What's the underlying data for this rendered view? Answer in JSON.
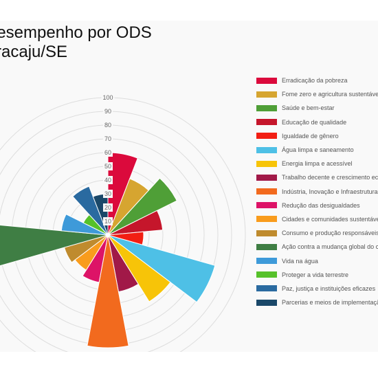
{
  "title_lines": [
    "Desempenho por ODS",
    "Aracaju/SE"
  ],
  "chart_data": {
    "type": "polar-area",
    "rlim": [
      0,
      100
    ],
    "r_ticks": [
      "0",
      "10",
      "20",
      "30",
      "40",
      "50",
      "60",
      "70",
      "80",
      "90",
      "100"
    ],
    "grid": true,
    "legend_position": "right",
    "categories": [
      "Erradicação da pobreza",
      "Fome zero e agricultura sustentável",
      "Saúde e bem-estar",
      "Educação de qualidade",
      "Igualdade de gênero",
      "Água limpa e saneamento",
      "Energia limpa e acessível",
      "Trabalho decente e crescimento econômico",
      "Indústria, Inovação e Infraestrutura",
      "Redução das desigualdades",
      "Cidades e comunidades sustentáveis",
      "Consumo e produção responsáveis",
      "Ação contra a mudança global do clima",
      "Vida na água",
      "Proteger a vida terrestre",
      "Paz, justiça e instituições eficazes",
      "Parcerias e meios de implementação"
    ],
    "values": [
      60,
      44,
      56,
      40,
      26,
      81,
      57,
      42,
      82,
      35,
      30,
      33,
      88,
      34,
      20,
      38,
      30
    ],
    "colors": [
      "#db0a3c",
      "#d6a530",
      "#4f9f37",
      "#c5162b",
      "#f21e13",
      "#4ec0e6",
      "#f7c408",
      "#a11948",
      "#f26a1e",
      "#dd1367",
      "#f99c1d",
      "#bf8b2e",
      "#3f7e44",
      "#3e9ad9",
      "#56c12a",
      "#2a6aa0",
      "#1a4869"
    ]
  }
}
